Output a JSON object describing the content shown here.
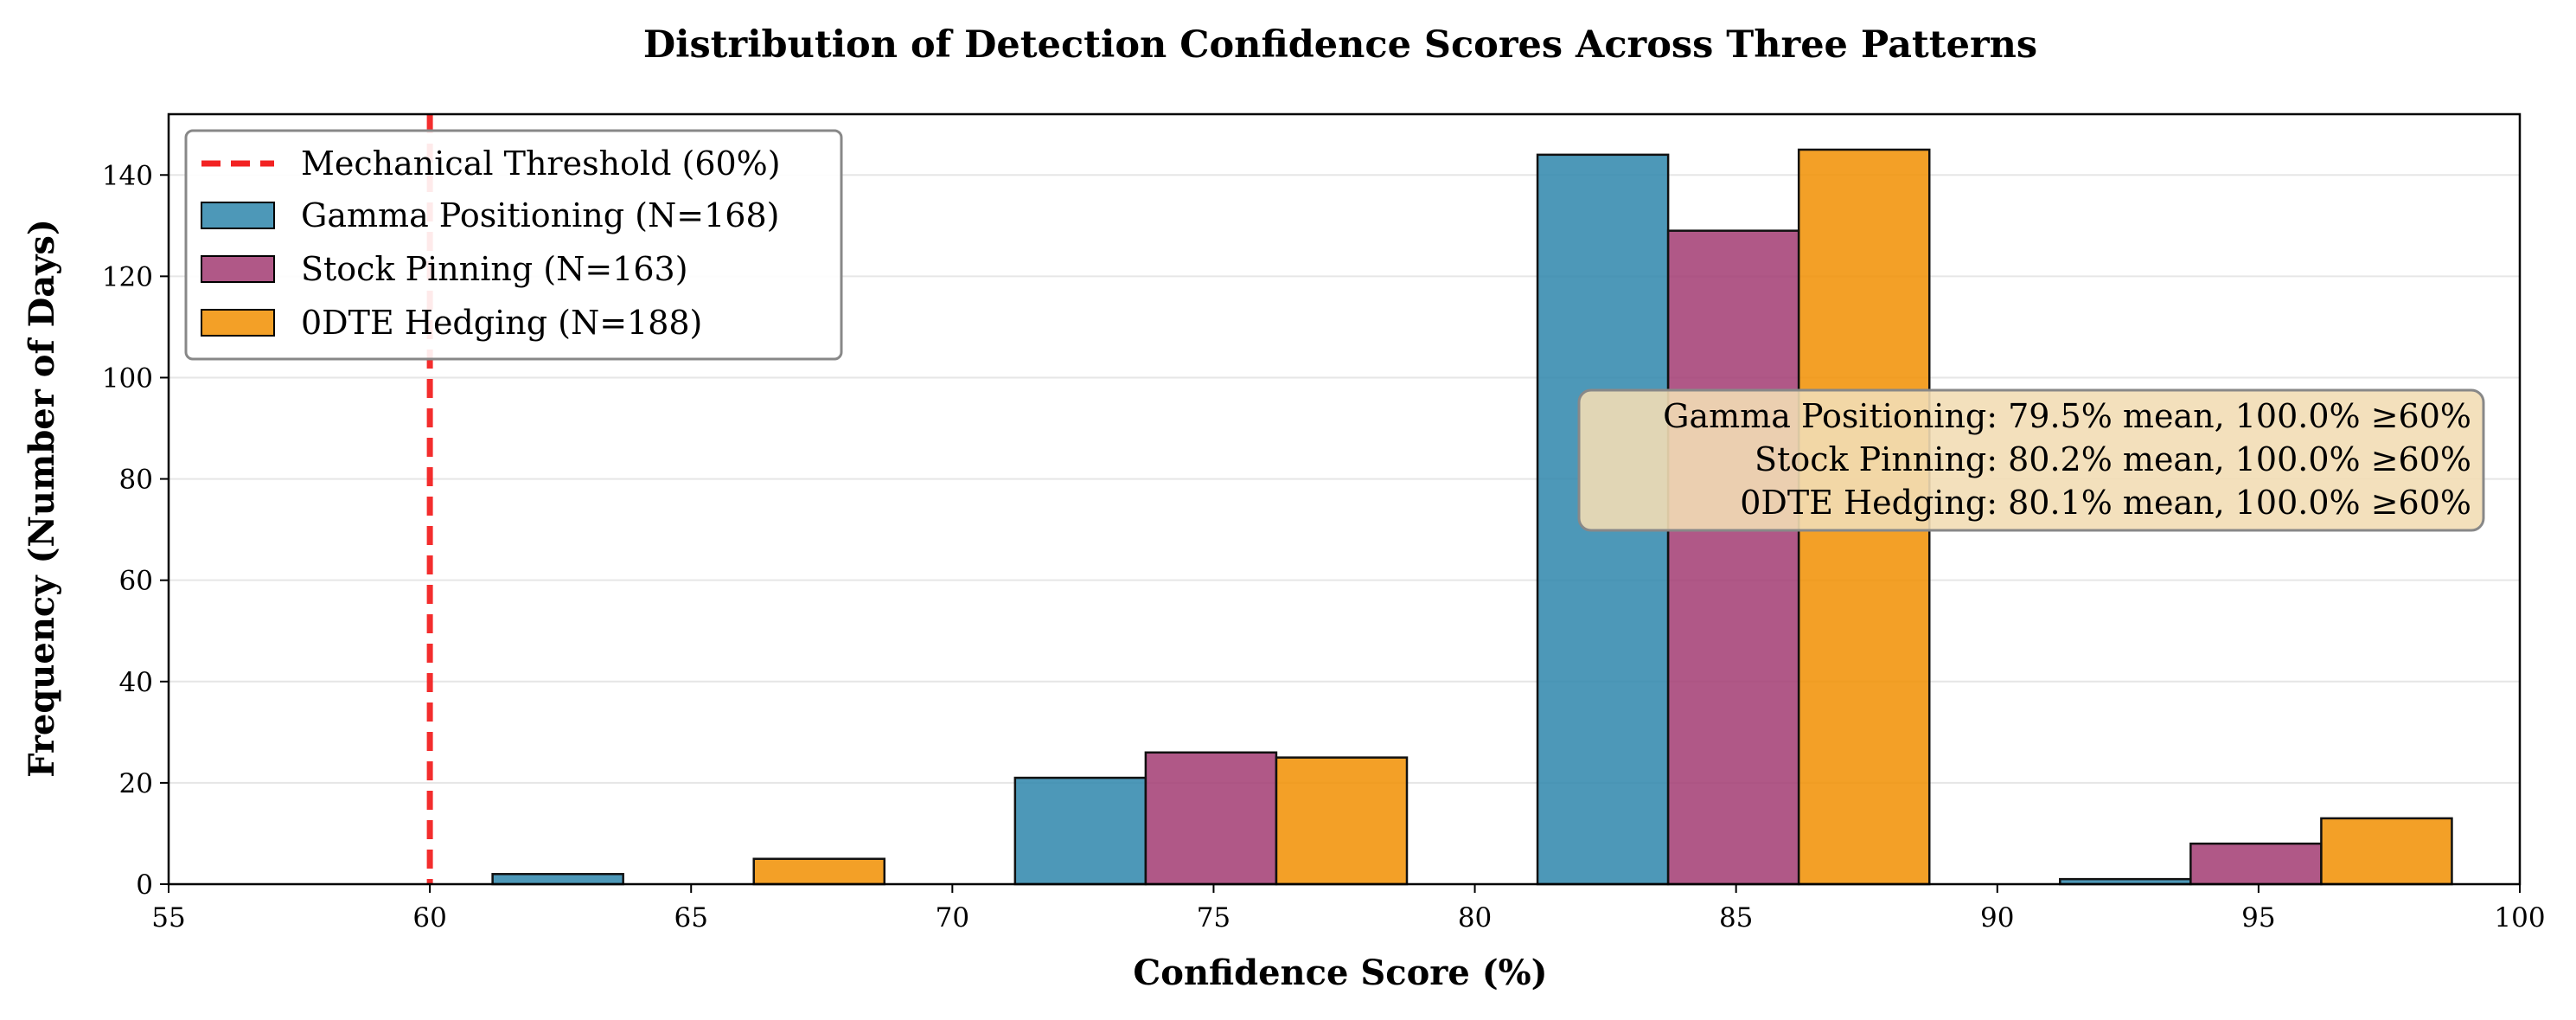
{
  "chart_data": {
    "type": "bar",
    "title": "Distribution of Detection Confidence Scores Across Three Patterns",
    "xlabel": "Confidence Score (%)",
    "ylabel": "Frequency (Number of Days)",
    "xlim": [
      55,
      100
    ],
    "ylim": [
      0,
      152
    ],
    "xticks": [
      55,
      60,
      65,
      70,
      75,
      80,
      85,
      90,
      95,
      100
    ],
    "yticks": [
      0,
      20,
      40,
      60,
      80,
      100,
      120,
      140
    ],
    "grid": "y",
    "bin_edges": [
      60,
      70,
      80,
      90,
      100
    ],
    "series": [
      {
        "name": "Gamma Positioning (N=168)",
        "color": "#2E86AB",
        "bars": [
          {
            "x0": 61.2,
            "x1": 63.7,
            "value": 2
          },
          {
            "x0": 71.2,
            "x1": 73.7,
            "value": 21
          },
          {
            "x0": 81.2,
            "x1": 83.7,
            "value": 144
          },
          {
            "x0": 91.2,
            "x1": 93.7,
            "value": 1
          }
        ]
      },
      {
        "name": "Stock Pinning (N=163)",
        "color": "#A23B72",
        "bars": [
          {
            "x0": 63.7,
            "x1": 66.2,
            "value": 0
          },
          {
            "x0": 73.7,
            "x1": 76.2,
            "value": 26
          },
          {
            "x0": 83.7,
            "x1": 86.2,
            "value": 129
          },
          {
            "x0": 93.7,
            "x1": 96.2,
            "value": 8
          }
        ]
      },
      {
        "name": "0DTE Hedging (N=188)",
        "color": "#F18F01",
        "bars": [
          {
            "x0": 66.2,
            "x1": 68.7,
            "value": 5
          },
          {
            "x0": 76.2,
            "x1": 78.7,
            "value": 25
          },
          {
            "x0": 86.2,
            "x1": 88.7,
            "value": 145
          },
          {
            "x0": 96.2,
            "x1": 98.7,
            "value": 13
          }
        ]
      }
    ],
    "threshold": {
      "x": 60,
      "label": "Mechanical Threshold (60%)",
      "color": "#F22222"
    },
    "legend_position": "upper-left",
    "stats_box": {
      "position": "right",
      "lines": [
        "Gamma Positioning: 79.5% mean, 100.0% ≥60%",
        "Stock Pinning: 80.2% mean, 100.0% ≥60%",
        "0DTE Hedging: 80.1% mean, 100.0% ≥60%"
      ]
    }
  }
}
